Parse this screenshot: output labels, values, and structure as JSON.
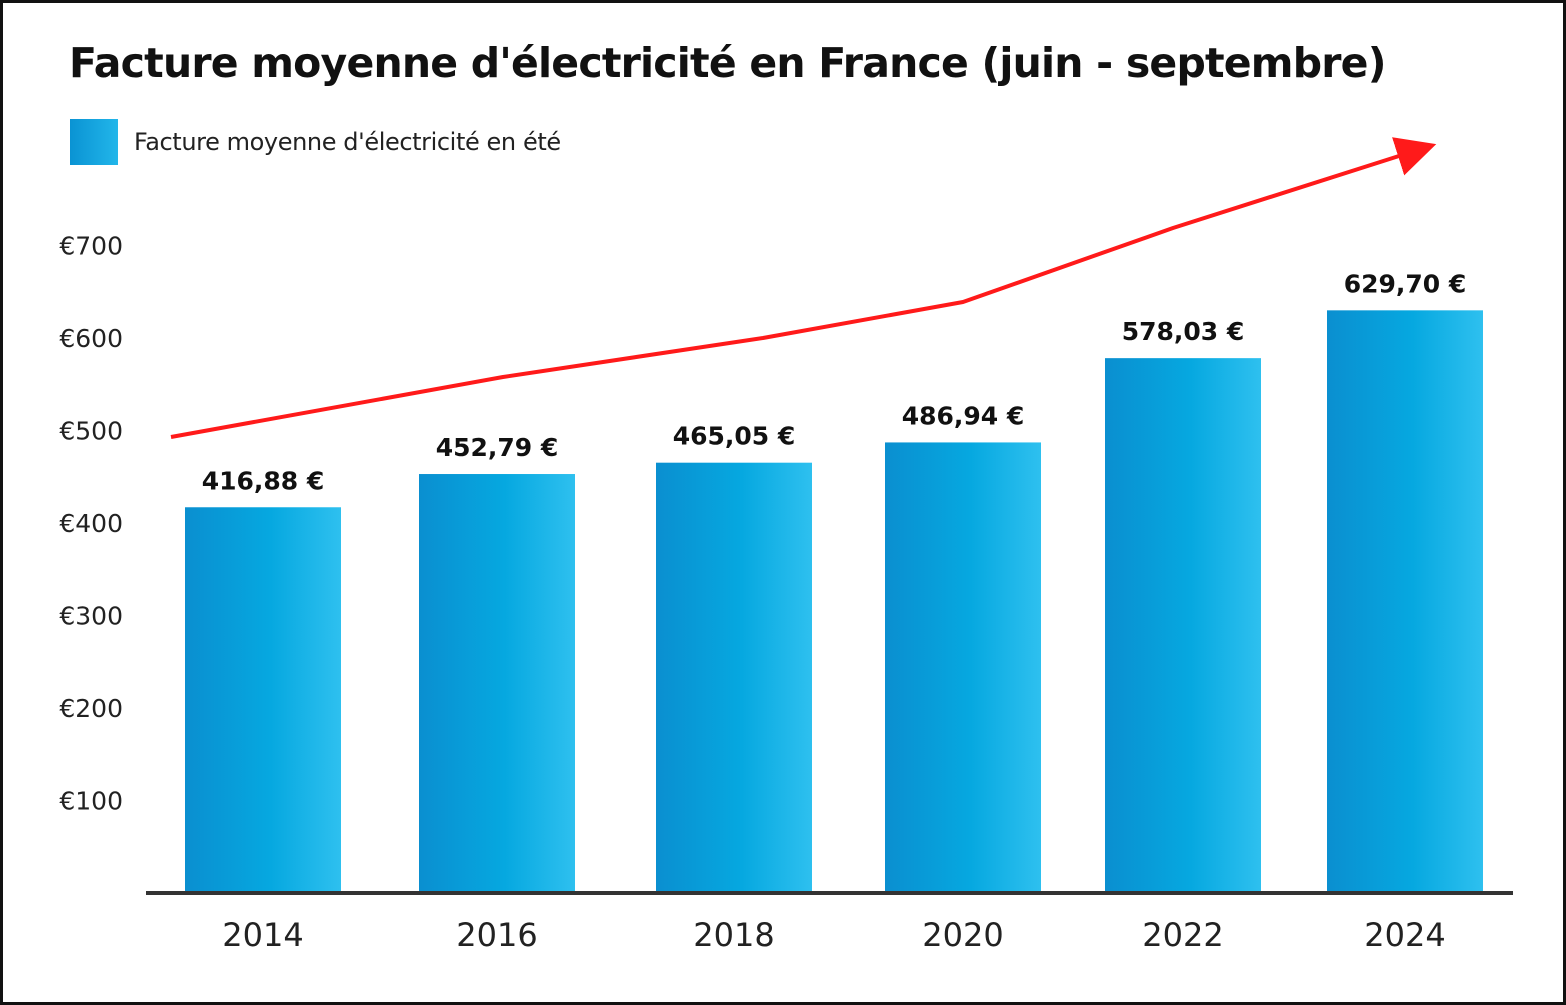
{
  "chart_data": {
    "type": "bar",
    "title": "Facture moyenne d'électricité en France (juin - septembre)",
    "xlabel": "",
    "ylabel": "",
    "categories": [
      "2014",
      "2016",
      "2018",
      "2020",
      "2022",
      "2024"
    ],
    "series": [
      {
        "name": "Facture moyenne d'électricité en été",
        "values": [
          416.88,
          452.79,
          465.05,
          486.94,
          578.03,
          629.7
        ],
        "labels": [
          "416,88 €",
          "452,79 €",
          "465,05 €",
          "486,94 €",
          "578,03 €",
          "629,70 €"
        ],
        "color": "#0a93d3"
      }
    ],
    "yticks": [
      100,
      200,
      300,
      400,
      500,
      600,
      700
    ],
    "ytick_labels": [
      "€100",
      "€200",
      "€300",
      "€400",
      "€500",
      "€600",
      "€700"
    ],
    "ylim": [
      0,
      740
    ],
    "grid": false,
    "legend": "top-left",
    "annotation": {
      "type": "trend-arrow",
      "color": "#ff1a1a"
    }
  }
}
